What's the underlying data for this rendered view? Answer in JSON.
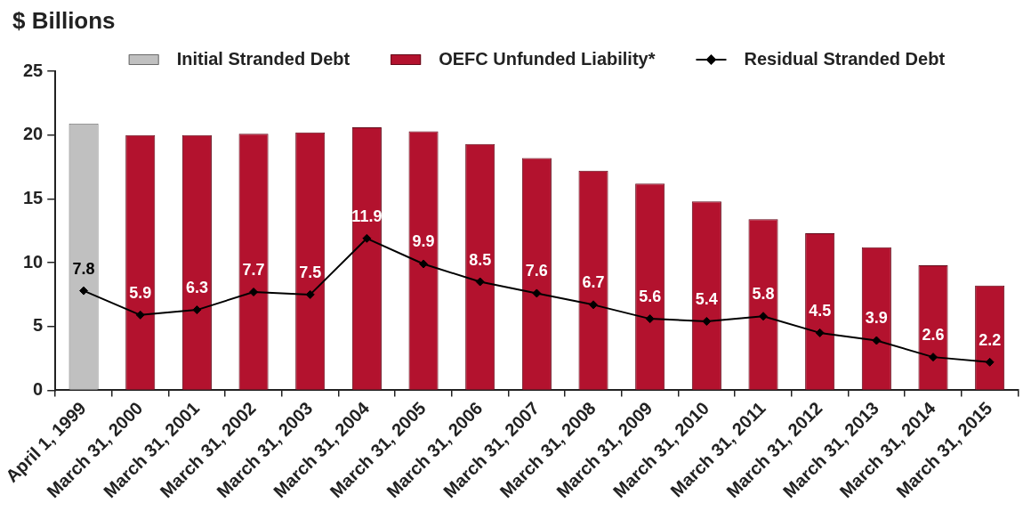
{
  "chart_data": {
    "type": "bar",
    "ylabel": "$ Billions",
    "categories": [
      "April 1, 1999",
      "March 31, 2000",
      "March 31, 2001",
      "March 31, 2002",
      "March 31, 2003",
      "March 31, 2004",
      "March 31, 2005",
      "March 31, 2006",
      "March 31, 2007",
      "March 31, 2008",
      "March 31, 2009",
      "March 31, 2010",
      "March 31, 2011",
      "March 31, 2012",
      "March 31, 2013",
      "March 31, 2014",
      "March 31, 2015"
    ],
    "series": [
      {
        "name": "Initial Stranded Debt",
        "color": "#c0c0c0",
        "values": [
          20.9,
          null,
          null,
          null,
          null,
          null,
          null,
          null,
          null,
          null,
          null,
          null,
          null,
          null,
          null,
          null,
          null
        ]
      },
      {
        "name": "OEFC Unfunded Liability*",
        "color": "#b3122e",
        "values": [
          null,
          20.0,
          20.0,
          20.1,
          20.2,
          20.6,
          20.3,
          19.3,
          18.2,
          17.2,
          16.2,
          14.8,
          13.4,
          12.3,
          11.2,
          9.8,
          8.2
        ]
      },
      {
        "name": "Residual Stranded Debt",
        "type": "line",
        "color": "#000000",
        "values": [
          7.8,
          5.9,
          6.3,
          7.7,
          7.5,
          11.9,
          9.9,
          8.5,
          7.6,
          6.7,
          5.6,
          5.4,
          5.8,
          4.5,
          3.9,
          2.6,
          2.2
        ],
        "value_labels": [
          "7.8",
          "5.9",
          "6.3",
          "7.7",
          "7.5",
          "11.9",
          "9.9",
          "8.5",
          "7.6",
          "6.7",
          "5.6",
          "5.4",
          "5.8",
          "4.5",
          "3.9",
          "2.6",
          "2.2"
        ]
      }
    ],
    "ylim": [
      0,
      25
    ],
    "yticks": [
      0,
      5,
      10,
      15,
      20,
      25
    ],
    "grid": false,
    "legend": "top",
    "marker": "diamond"
  }
}
